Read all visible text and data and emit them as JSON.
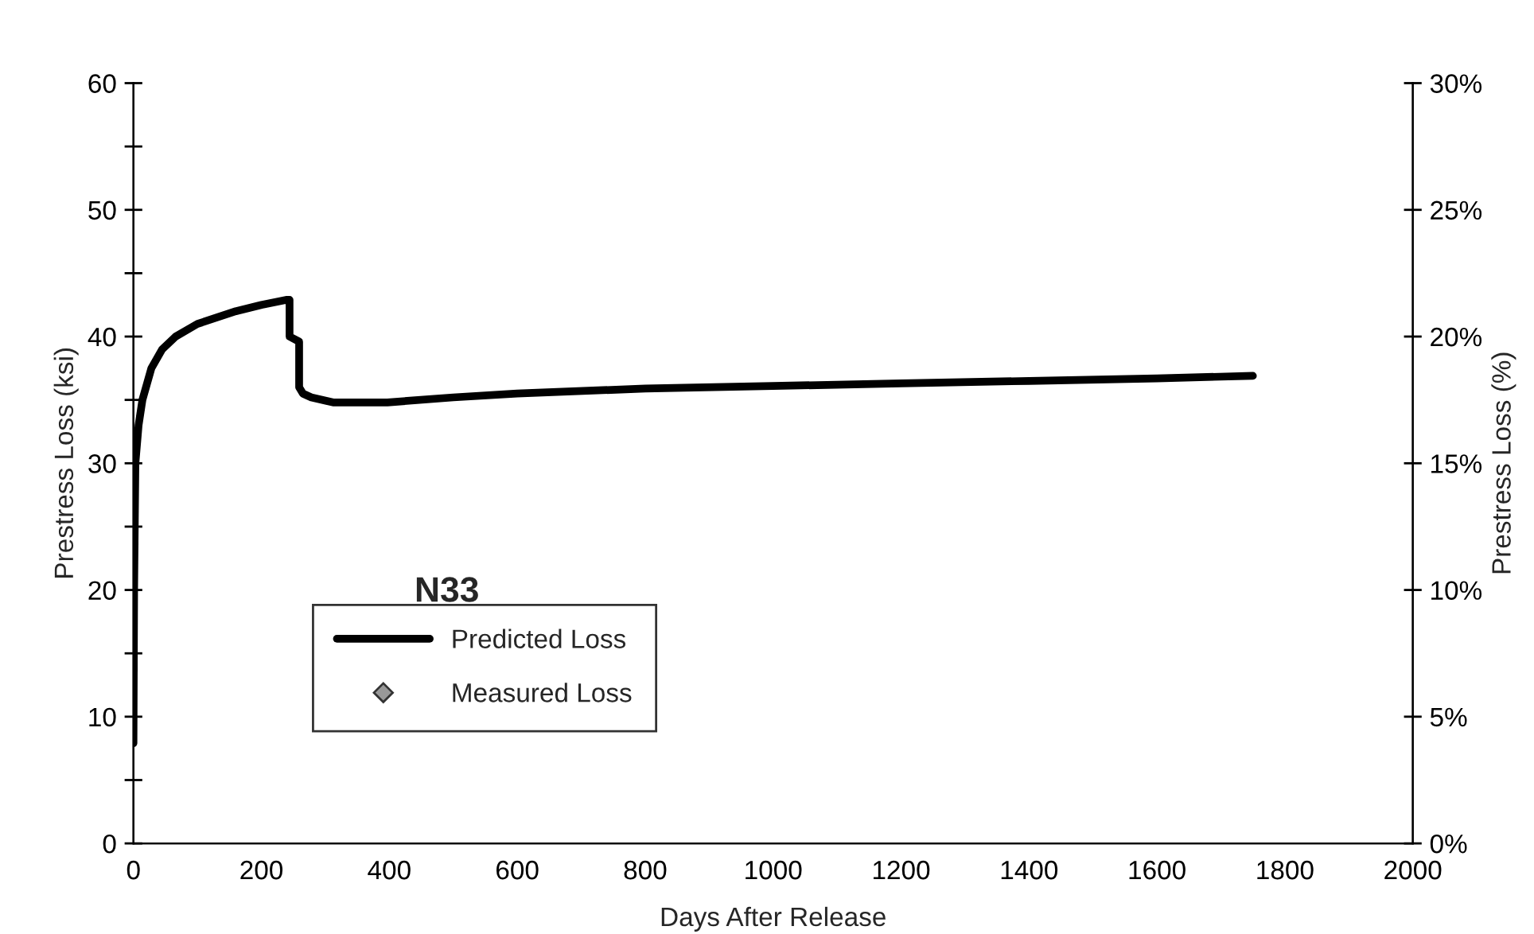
{
  "chart_data": {
    "type": "line",
    "xlabel": "Days After Release",
    "ylabel": "Prestress Loss (ksi)",
    "y2label": "Prestress Loss (%)",
    "xlim": [
      0,
      2000
    ],
    "xticks": [
      0,
      200,
      400,
      600,
      800,
      1000,
      1200,
      1400,
      1600,
      1800,
      2000
    ],
    "ylim": [
      0,
      60
    ],
    "yticks": [
      0,
      {
        "value": 5,
        "label": null
      },
      10,
      {
        "value": 15,
        "label": null
      },
      20,
      {
        "value": 25,
        "label": null
      },
      30,
      {
        "value": 35,
        "label": null
      },
      40,
      {
        "value": 45,
        "label": null
      },
      50,
      {
        "value": 55,
        "label": null
      },
      60
    ],
    "y2lim": [
      0,
      30
    ],
    "y2ticks": [
      {
        "value": 0,
        "label": "0%"
      },
      {
        "value": 5,
        "label": "5%"
      },
      {
        "value": 10,
        "label": "10%"
      },
      {
        "value": 15,
        "label": "15%"
      },
      {
        "value": 20,
        "label": "20%"
      },
      {
        "value": 25,
        "label": "25%"
      },
      {
        "value": 30,
        "label": "30%"
      }
    ],
    "grid": false,
    "legend": "bottom left",
    "annotations": [
      "N33"
    ],
    "series": [
      {
        "name": "Predicted Loss",
        "color": "#000000",
        "marker": "none",
        "line_style": "solid",
        "x": [
          0,
          1,
          3,
          8,
          14,
          28,
          45,
          66,
          100,
          160,
          200,
          240,
          244,
          244,
          259,
          259,
          265,
          278,
          312,
          397,
          500,
          600,
          800,
          1000,
          1200,
          1400,
          1600,
          1750
        ],
        "values": [
          7.9,
          20,
          30,
          33,
          35,
          37.5,
          39,
          40,
          41,
          42,
          42.5,
          42.9,
          42.9,
          40,
          39.6,
          36,
          35.5,
          35.2,
          34.8,
          34.8,
          35.2,
          35.5,
          35.9,
          36.1,
          36.3,
          36.5,
          36.7,
          36.9
        ]
      },
      {
        "name": "Measured Loss",
        "type": "scatter",
        "color": "#999999",
        "marker": "diamond"
      }
    ]
  }
}
